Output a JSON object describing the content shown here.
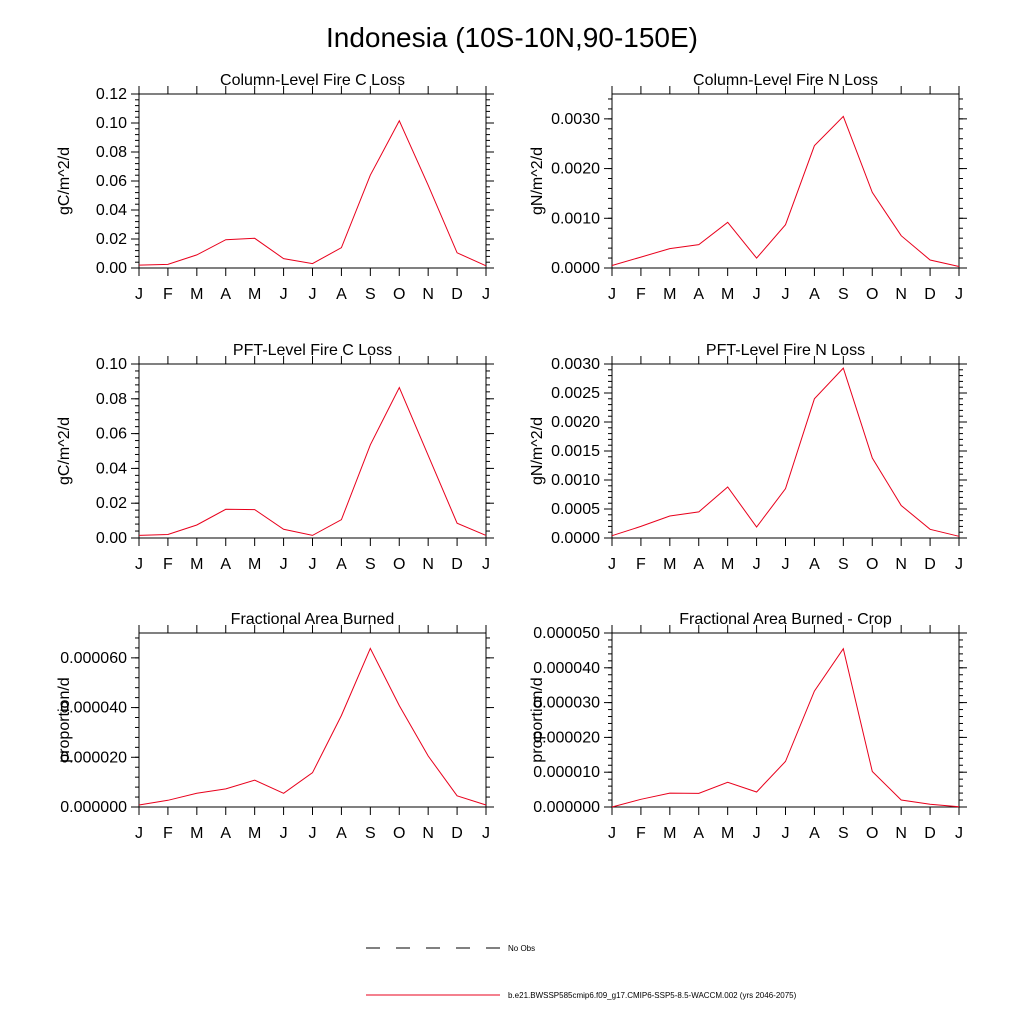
{
  "title": "Indonesia (10S-10N,90-150E)",
  "months": [
    "J",
    "F",
    "M",
    "A",
    "M",
    "J",
    "J",
    "A",
    "S",
    "O",
    "N",
    "D",
    "J"
  ],
  "legend": {
    "obs_label": "No Obs",
    "model_label": "b.e21.BWSSP585cmip6.f09_g17.CMIP6-SSP5-8.5-WACCM.002 (yrs 2046-2075)"
  },
  "colors": {
    "model_line": "#e8001c",
    "axis": "#000000"
  },
  "chart_data": [
    {
      "type": "line",
      "title": "Column-Level Fire C Loss",
      "ylabel": "gC/m^2/d",
      "ylim": [
        0,
        0.12
      ],
      "yticks": [
        "0.00",
        "0.02",
        "0.04",
        "0.06",
        "0.08",
        "0.10",
        "0.12"
      ],
      "categories": [
        "J",
        "F",
        "M",
        "A",
        "M",
        "J",
        "J",
        "A",
        "S",
        "O",
        "N",
        "D",
        "J"
      ],
      "series": [
        {
          "values": [
            0.002,
            0.0025,
            0.009,
            0.0195,
            0.0205,
            0.0065,
            0.003,
            0.014,
            0.064,
            0.1015,
            0.057,
            0.0105,
            0.0015
          ]
        }
      ]
    },
    {
      "type": "line",
      "title": "Column-Level Fire N Loss",
      "ylabel": "gN/m^2/d",
      "ylim": [
        0,
        0.0035
      ],
      "yticks": [
        "0.0000",
        "0.0010",
        "0.0020",
        "0.0030"
      ],
      "categories": [
        "J",
        "F",
        "M",
        "A",
        "M",
        "J",
        "J",
        "A",
        "S",
        "O",
        "N",
        "D",
        "J"
      ],
      "series": [
        {
          "values": [
            5e-05,
            0.00022,
            0.00039,
            0.00047,
            0.00092,
            0.0002,
            0.00087,
            0.00246,
            0.00305,
            0.00152,
            0.00065,
            0.00016,
            3e-05
          ]
        }
      ]
    },
    {
      "type": "line",
      "title": "PFT-Level Fire C Loss",
      "ylabel": "gC/m^2/d",
      "ylim": [
        0,
        0.1
      ],
      "yticks": [
        "0.00",
        "0.02",
        "0.04",
        "0.06",
        "0.08",
        "0.10"
      ],
      "categories": [
        "J",
        "F",
        "M",
        "A",
        "M",
        "J",
        "J",
        "A",
        "S",
        "O",
        "N",
        "D",
        "J"
      ],
      "series": [
        {
          "values": [
            0.0015,
            0.002,
            0.0075,
            0.0165,
            0.0163,
            0.005,
            0.0015,
            0.0105,
            0.0535,
            0.0865,
            0.0475,
            0.0085,
            0.0015
          ]
        }
      ]
    },
    {
      "type": "line",
      "title": "PFT-Level Fire N Loss",
      "ylabel": "gN/m^2/d",
      "ylim": [
        0,
        0.003
      ],
      "yticks": [
        "0.0000",
        "0.0005",
        "0.0010",
        "0.0015",
        "0.0020",
        "0.0025",
        "0.0030"
      ],
      "categories": [
        "J",
        "F",
        "M",
        "A",
        "M",
        "J",
        "J",
        "A",
        "S",
        "O",
        "N",
        "D",
        "J"
      ],
      "series": [
        {
          "values": [
            4e-05,
            0.0002,
            0.00038,
            0.00045,
            0.00088,
            0.00019,
            0.00085,
            0.0024,
            0.00293,
            0.00138,
            0.00056,
            0.00015,
            3e-05
          ]
        }
      ]
    },
    {
      "type": "line",
      "title": "Fractional Area Burned",
      "ylabel": "proportion/d",
      "ylim": [
        0,
        7e-05
      ],
      "yticks": [
        "0.000000",
        "0.000020",
        "0.000040",
        "0.000060"
      ],
      "categories": [
        "J",
        "F",
        "M",
        "A",
        "M",
        "J",
        "J",
        "A",
        "S",
        "O",
        "N",
        "D",
        "J"
      ],
      "series": [
        {
          "values": [
            8e-07,
            2.7e-06,
            5.5e-06,
            7.3e-06,
            1.08e-05,
            5.5e-06,
            1.38e-05,
            3.68e-05,
            6.38e-05,
            4.08e-05,
            2.05e-05,
            4.5e-06,
            8e-07
          ]
        }
      ]
    },
    {
      "type": "line",
      "title": "Fractional Area Burned - Crop",
      "ylabel": "proportion/d",
      "ylim": [
        0,
        5e-05
      ],
      "yticks": [
        "0.000000",
        "0.000010",
        "0.000020",
        "0.000030",
        "0.000040",
        "0.000050"
      ],
      "categories": [
        "J",
        "F",
        "M",
        "A",
        "M",
        "J",
        "J",
        "A",
        "S",
        "O",
        "N",
        "D",
        "J"
      ],
      "series": [
        {
          "values": [
            0.0,
            2.2e-06,
            4e-06,
            3.9e-06,
            7.1e-06,
            4.3e-06,
            1.31e-05,
            3.33e-05,
            4.55e-05,
            1.02e-05,
            2e-06,
            8e-07,
            1e-07
          ]
        }
      ]
    }
  ]
}
